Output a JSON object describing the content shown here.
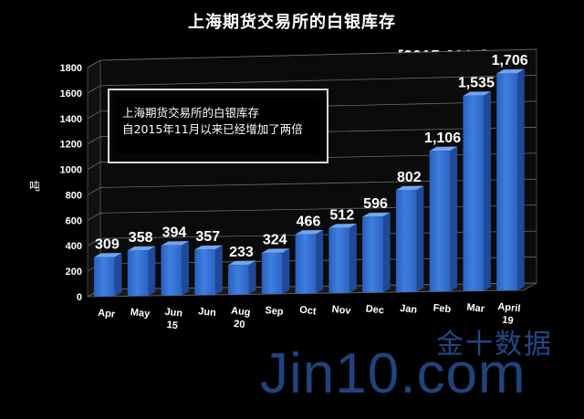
{
  "chart_data": {
    "type": "bar",
    "title": "上海期货交易所的白银库存",
    "subtitle": "[2015-2016]",
    "ylabel": "吨",
    "xlabel": "",
    "ylim": [
      0,
      1800
    ],
    "yticks": [
      "0",
      "200",
      "400",
      "600",
      "800",
      "1000",
      "1200",
      "1400",
      "1600",
      "1800"
    ],
    "categories": [
      [
        "Apr"
      ],
      [
        "May"
      ],
      [
        "Jun",
        "15"
      ],
      [
        "Jun"
      ],
      [
        "Aug",
        "20"
      ],
      [
        "Sep"
      ],
      [
        "Oct"
      ],
      [
        "Nov"
      ],
      [
        "Dec"
      ],
      [
        "Jan"
      ],
      [
        "Feb"
      ],
      [
        "Mar"
      ],
      [
        "April",
        "19"
      ]
    ],
    "values": [
      309,
      358,
      394,
      357,
      233,
      324,
      466,
      512,
      596,
      802,
      1106,
      1535,
      1706
    ],
    "data_labels": [
      "309",
      "358",
      "394",
      "357",
      "233",
      "324",
      "466",
      "512",
      "596",
      "802",
      "1,106",
      "1,535",
      "1,706"
    ],
    "grid": true,
    "legend": "none",
    "bar_color": "#3f7fdf"
  },
  "annotation": {
    "line1": "上海期货交易所的白银库存",
    "line2": "自2015年11月以来已经增加了两倍"
  },
  "watermark": {
    "cn": "金十数据",
    "en": "Jin10.com"
  }
}
